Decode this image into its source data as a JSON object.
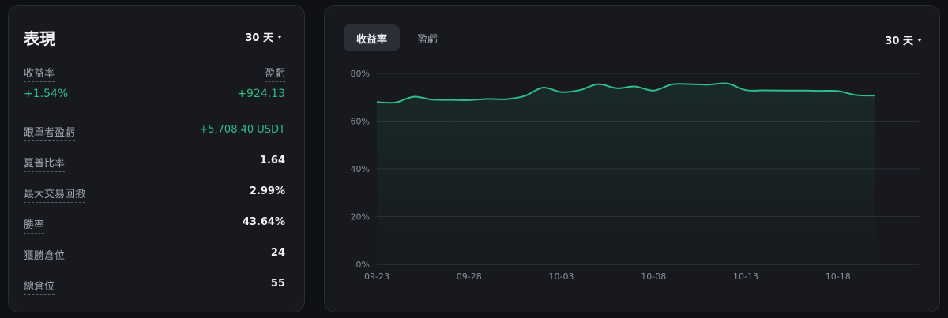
{
  "performance": {
    "title": "表現",
    "period": "30 天",
    "roi_label": "收益率",
    "pnl_label": "盈虧",
    "roi_value": "+1.54%",
    "pnl_value": "+924.13",
    "stats": [
      {
        "label": "跟單者盈虧",
        "value": "+5,708.40 USDT",
        "positive": true
      },
      {
        "label": "夏普比率",
        "value": "1.64",
        "positive": false
      },
      {
        "label": "最大交易回撤",
        "value": "2.99%",
        "positive": false
      },
      {
        "label": "勝率",
        "value": "43.64%",
        "positive": false
      },
      {
        "label": "獲勝倉位",
        "value": "24",
        "positive": false
      },
      {
        "label": "總倉位",
        "value": "55",
        "positive": false
      }
    ]
  },
  "chart_panel": {
    "tabs": [
      {
        "label": "收益率",
        "active": true
      },
      {
        "label": "盈虧",
        "active": false
      }
    ],
    "period": "30 天"
  },
  "colors": {
    "accent_green": "#2ebd85",
    "background": "#0f1014",
    "card": "#17191e"
  },
  "chart_data": {
    "type": "area",
    "x_start": "09-23",
    "x_tick_labels": [
      "09-23",
      "09-28",
      "10-03",
      "10-08",
      "10-13",
      "10-18"
    ],
    "y_tick_labels": [
      "80%",
      "60%",
      "40%",
      "20%",
      "0%"
    ],
    "ylim": [
      0,
      80
    ],
    "grid": true,
    "series": [
      {
        "values": [
          68.0,
          67.8,
          70.2,
          69.0,
          68.9,
          68.8,
          69.3,
          69.2,
          70.5,
          74.0,
          72.2,
          73.0,
          75.5,
          73.8,
          74.5,
          72.8,
          75.4,
          75.5,
          75.3,
          75.8,
          73.0,
          72.9,
          72.8,
          72.8,
          72.7,
          72.6,
          70.9,
          70.7
        ]
      }
    ]
  }
}
